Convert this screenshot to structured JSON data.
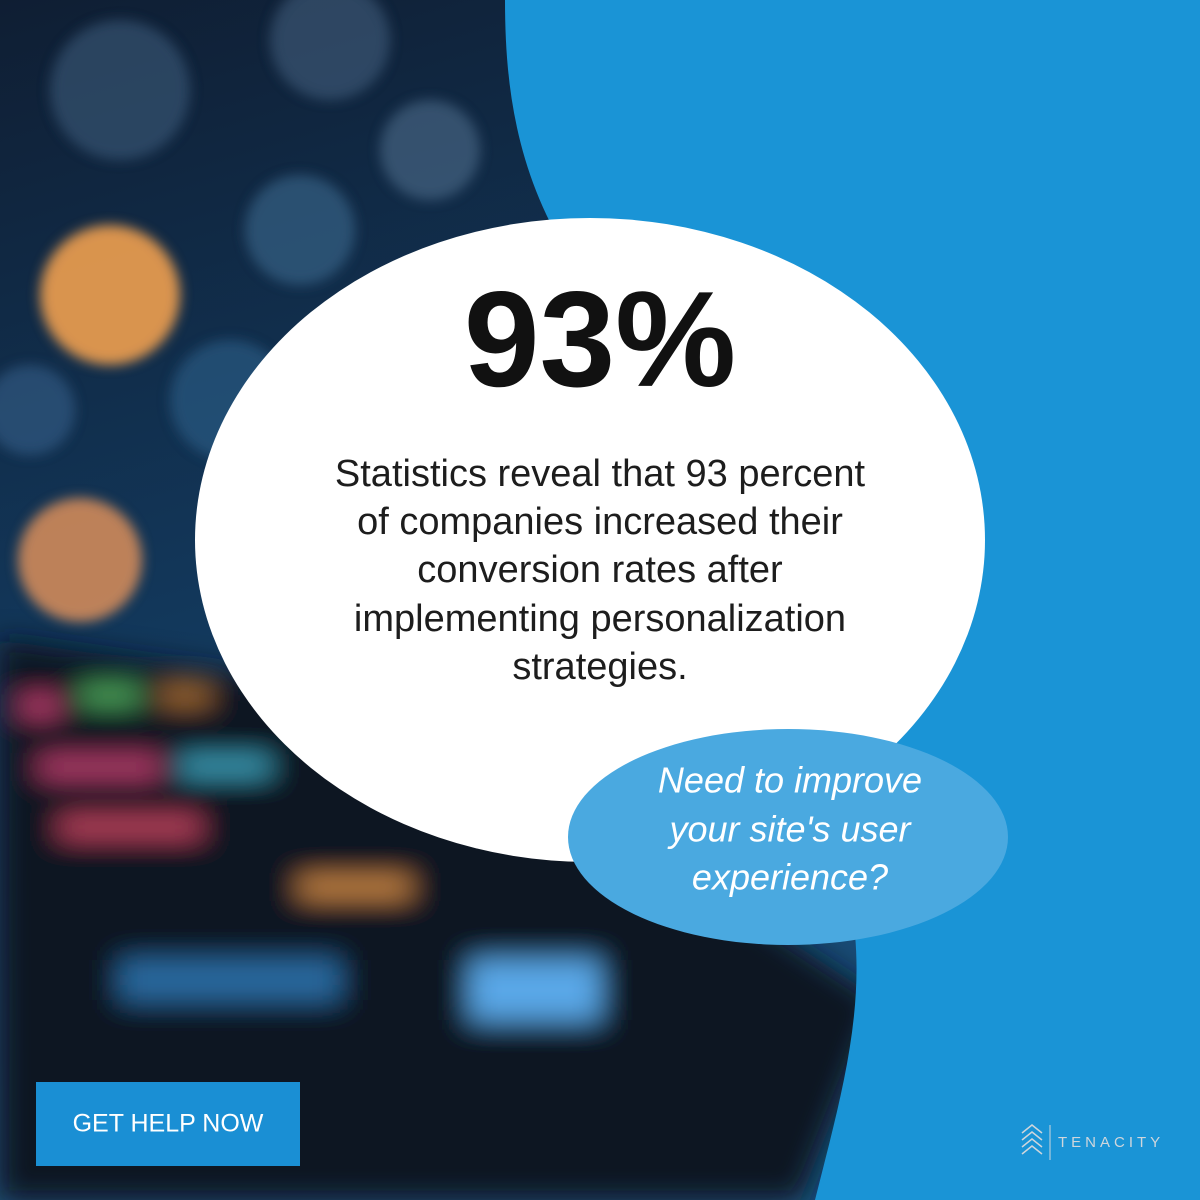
{
  "headline": "93%",
  "body_lines": [
    "Statistics reveal that 93 percent",
    "of companies increased their",
    "conversion rates after",
    "implementing personalization",
    "strategies."
  ],
  "question_lines": [
    "Need to improve",
    "your site's user",
    "experience?"
  ],
  "button": "GET HELP NOW",
  "logo": "TENACITY"
}
